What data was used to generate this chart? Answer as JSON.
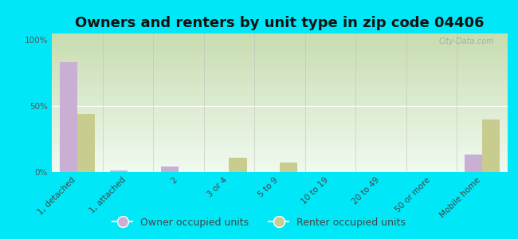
{
  "title": "Owners and renters by unit type in zip code 04406",
  "categories": [
    "1, detached",
    "1, attached",
    "2",
    "3 or 4",
    "5 to 9",
    "10 to 19",
    "20 to 49",
    "50 or more",
    "Mobile home"
  ],
  "owner_values": [
    83,
    1,
    4,
    0,
    0,
    0,
    0,
    0,
    13
  ],
  "renter_values": [
    44,
    0,
    0,
    11,
    7,
    0,
    0,
    0,
    40
  ],
  "owner_color": "#c9afd4",
  "renter_color": "#c8cc8e",
  "background_color": "#00e8f8",
  "ylabel_ticks": [
    "0%",
    "50%",
    "100%"
  ],
  "yticks": [
    0,
    50,
    100
  ],
  "ylim": [
    0,
    105
  ],
  "bar_width": 0.35,
  "title_fontsize": 13,
  "tick_fontsize": 7.5,
  "legend_fontsize": 9,
  "watermark": "City-Data.com"
}
